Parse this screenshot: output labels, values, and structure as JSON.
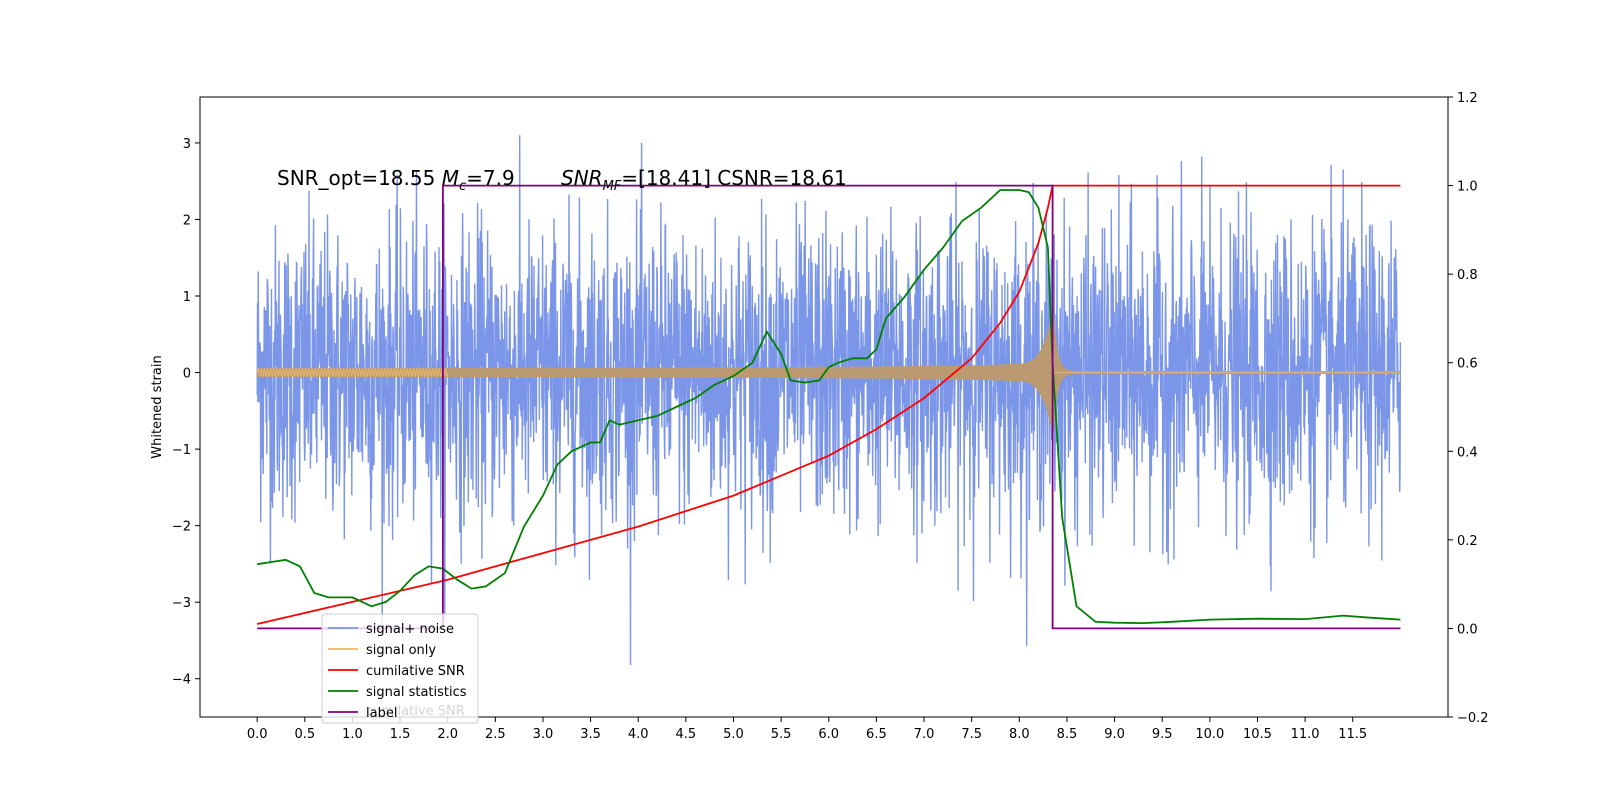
{
  "chart_data": {
    "type": "line",
    "title": "",
    "xlabel": "",
    "ylabel": "Whitened strain",
    "xlim": [
      -0.6,
      12.5
    ],
    "ylim": [
      -4.5,
      3.6
    ],
    "y2lim": [
      -0.2,
      1.2
    ],
    "grid": false,
    "legend_position": "lower-left",
    "x_ticks": [
      "0.0",
      "0.5",
      "1.0",
      "1.5",
      "2.0",
      "2.5",
      "3.0",
      "3.5",
      "4.0",
      "4.5",
      "5.0",
      "5.5",
      "6.0",
      "6.5",
      "7.0",
      "7.5",
      "8.0",
      "8.5",
      "9.0",
      "9.5",
      "10.0",
      "10.5",
      "11.0",
      "11.5"
    ],
    "y_ticks": [
      "3",
      "2",
      "1",
      "0",
      "−1",
      "−2",
      "−3",
      "−4"
    ],
    "y2_ticks": [
      "1.2",
      "1.0",
      "0.8",
      "0.6",
      "0.4",
      "0.2",
      "0.0",
      "−0.2"
    ],
    "annotations": [
      {
        "text": "SNR_opt=18.55 Mc=7.9",
        "x": 0.2,
        "y": 2.45
      },
      {
        "text": "SNRMF=[18.41] CSNR=18.61",
        "x": 3.2,
        "y": 2.45
      }
    ],
    "series": [
      {
        "name": "signal+ noise",
        "color": "#7b96e8",
        "axis": "left",
        "x_range": [
          0.0,
          12.0
        ],
        "amplitude_band": [
          -2.6,
          2.9
        ]
      },
      {
        "name": "signal only",
        "color": "#f2b75a",
        "axis": "left",
        "x_range": [
          0.0,
          12.0
        ],
        "merger_x": 8.35
      },
      {
        "name": "cumilative SNR",
        "color": "#ff0000",
        "axis": "right",
        "x": [
          0.0,
          1.0,
          2.0,
          3.0,
          4.0,
          5.0,
          6.0,
          6.5,
          7.0,
          7.5,
          7.8,
          8.0,
          8.2,
          8.3,
          8.35,
          9.0,
          10.0,
          11.0,
          12.0
        ],
        "y": [
          0.01,
          0.06,
          0.11,
          0.17,
          0.23,
          0.3,
          0.39,
          0.45,
          0.52,
          0.61,
          0.69,
          0.76,
          0.87,
          0.95,
          1.0,
          1.0,
          1.0,
          1.0,
          1.0
        ]
      },
      {
        "name": "signal statistics",
        "color": "#008000",
        "axis": "right",
        "x": [
          0.0,
          0.15,
          0.3,
          0.45,
          0.6,
          0.75,
          1.0,
          1.2,
          1.35,
          1.5,
          1.65,
          1.8,
          1.95,
          2.1,
          2.25,
          2.4,
          2.6,
          2.8,
          3.0,
          3.15,
          3.3,
          3.5,
          3.6,
          3.7,
          3.8,
          4.0,
          4.2,
          4.4,
          4.6,
          4.8,
          5.0,
          5.2,
          5.35,
          5.5,
          5.6,
          5.75,
          5.9,
          6.0,
          6.1,
          6.25,
          6.4,
          6.5,
          6.6,
          6.8,
          7.0,
          7.2,
          7.4,
          7.6,
          7.8,
          8.0,
          8.1,
          8.2,
          8.3,
          8.35,
          8.45,
          8.6,
          8.8,
          9.0,
          9.3,
          9.6,
          10.0,
          10.5,
          11.0,
          11.4,
          11.7,
          12.0
        ],
        "y": [
          0.145,
          0.15,
          0.155,
          0.14,
          0.08,
          0.07,
          0.07,
          0.05,
          0.06,
          0.085,
          0.12,
          0.14,
          0.135,
          0.11,
          0.09,
          0.095,
          0.125,
          0.23,
          0.3,
          0.37,
          0.4,
          0.42,
          0.42,
          0.47,
          0.46,
          0.47,
          0.48,
          0.5,
          0.52,
          0.55,
          0.57,
          0.6,
          0.67,
          0.62,
          0.56,
          0.555,
          0.56,
          0.59,
          0.6,
          0.61,
          0.61,
          0.63,
          0.7,
          0.75,
          0.81,
          0.86,
          0.92,
          0.95,
          0.99,
          0.99,
          0.985,
          0.95,
          0.86,
          0.6,
          0.25,
          0.05,
          0.015,
          0.013,
          0.012,
          0.015,
          0.02,
          0.022,
          0.021,
          0.029,
          0.024,
          0.02
        ]
      },
      {
        "name": "label",
        "color": "#800080",
        "axis": "right",
        "x": [
          0.0,
          1.95,
          1.95,
          8.35,
          8.35,
          12.0
        ],
        "y": [
          0.0,
          0.0,
          1.0,
          1.0,
          0.0,
          0.0
        ]
      }
    ],
    "legend_entries": [
      "signal+ noise",
      "signal only",
      "cumilative SNR",
      "signal statistics",
      "label"
    ],
    "legend_ghost_text": "cumilative SNR"
  }
}
